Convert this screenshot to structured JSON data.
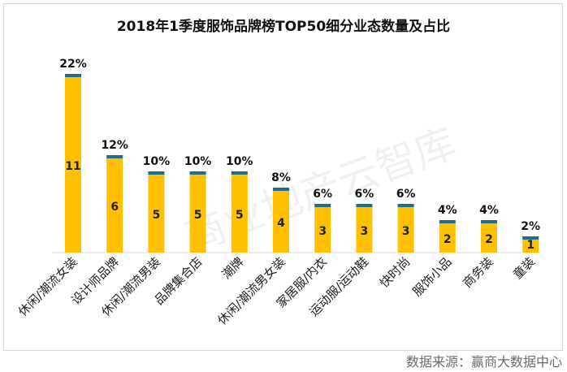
{
  "chart_data": {
    "type": "bar",
    "title": "2018年1季度服饰品牌榜TOP50细分业态数量及占比",
    "categories": [
      "休闲/潮流女装",
      "设计师品牌",
      "休闲/潮流男装",
      "品牌集合店",
      "潮牌",
      "休闲/潮流男女装",
      "家居服/内衣",
      "运动服/运动鞋",
      "快时尚",
      "服饰小品",
      "商务装",
      "童装"
    ],
    "series": [
      {
        "values": [
          11,
          6,
          5,
          5,
          5,
          4,
          3,
          3,
          3,
          2,
          2,
          1
        ],
        "color": "#FFC000"
      },
      {
        "values_percent": [
          22,
          12,
          10,
          10,
          10,
          8,
          6,
          6,
          6,
          4,
          4,
          2
        ],
        "color": "#1F6E8C"
      }
    ],
    "value_labels": [
      "11",
      "6",
      "5",
      "5",
      "5",
      "4",
      "3",
      "3",
      "3",
      "2",
      "2",
      "1"
    ],
    "percent_labels": [
      "22%",
      "12%",
      "10%",
      "10%",
      "10%",
      "8%",
      "6%",
      "6%",
      "6%",
      "4%",
      "4%",
      "2%"
    ],
    "xlabel": "",
    "ylabel": "",
    "grid": false,
    "legend": "none"
  },
  "source": "数据来源：赢商大数据中心",
  "watermark": "商业地产云智库"
}
